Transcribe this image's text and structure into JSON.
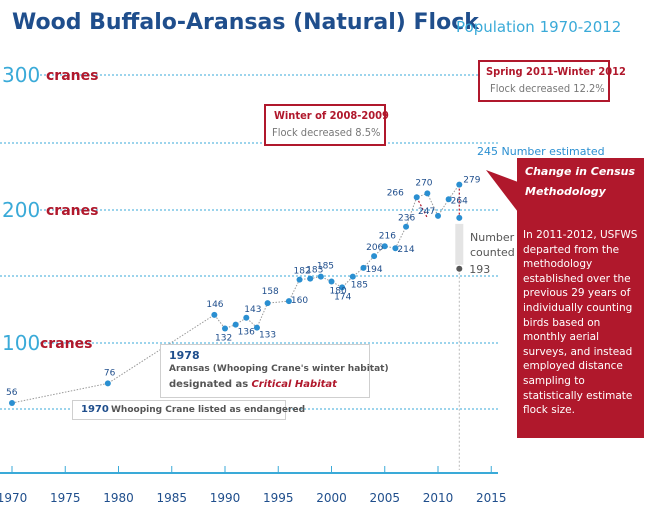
{
  "header": {
    "title": "Wood Buffalo-Aransas (Natural) Flock",
    "subtitle": "Population 1970-2012"
  },
  "reference_lines": [
    {
      "value": 300,
      "number": "300",
      "unit": "cranes"
    },
    {
      "value": 200,
      "number": "200",
      "unit": "cranes"
    },
    {
      "value": 100,
      "number": "100",
      "unit": "cranes"
    }
  ],
  "annotations": {
    "habitat_year": "1978",
    "habitat_line1": "Aransas (Whooping Crane's winter habitat)",
    "habitat_line2_prefix": "designated as",
    "habitat_line2_emph": "Critical Habitat",
    "endangered_year": "1970",
    "endangered_text": "Whooping Crane listed as endangered",
    "winter_title": "Winter of 2008-2009",
    "winter_text": "Flock decreased 8.5%",
    "spring_title": "Spring 2011-Winter 2012",
    "spring_text": "Flock decreased 12.2%",
    "estimated_label": "245 Number estimated",
    "counted_value": "193",
    "counted_label_1": "Number",
    "counted_label_2": "counted",
    "census_title_1": "Change in Census",
    "census_title_2": "Methodology",
    "census_body": "In 2011-2012, USFWS departed from the methodology established over the previous 29 years of individually counting birds based on monthly aerial surveys, and instead employed distance sampling to statistically estimate flock size."
  },
  "colors": {
    "title": "#1f4e8c",
    "accent": "#3aaad8",
    "point": "#2a8fd1",
    "brand_red": "#b0182c"
  },
  "chart_data": {
    "type": "line",
    "title": "Wood Buffalo-Aransas (Natural) Flock",
    "subtitle": "Population 1970-2012",
    "xlim": [
      1970,
      2015
    ],
    "ylim": [
      40,
      320
    ],
    "x_ticks": [
      1970,
      1975,
      1980,
      1985,
      1990,
      1995,
      2000,
      2005,
      2010,
      2015
    ],
    "grid": false,
    "series": [
      {
        "name": "Number counted",
        "x": [
          1970,
          1979,
          1989,
          1990,
          1991,
          1992,
          1993,
          1994,
          1996,
          1997,
          1998,
          1999,
          2000,
          2001,
          2002,
          2003,
          2004,
          2005,
          2006,
          2007,
          2008,
          2009,
          2010,
          2011
        ],
        "y": [
          56,
          76,
          146,
          132,
          136,
          143,
          133,
          158,
          160,
          182,
          183,
          185,
          180,
          174,
          185,
          194,
          206,
          216,
          214,
          236,
          266,
          270,
          247,
          264
        ]
      },
      {
        "name": "Number estimated",
        "x": [
          2011,
          2012
        ],
        "y": [
          279,
          245
        ]
      },
      {
        "name": "Number counted 2012",
        "x": [
          2012
        ],
        "y": [
          193
        ]
      }
    ],
    "point_labels": [
      {
        "x": 1970,
        "y": 56,
        "text": "56"
      },
      {
        "x": 1979,
        "y": 76,
        "text": "76"
      },
      {
        "x": 1989,
        "y": 146,
        "text": "146"
      },
      {
        "x": 1990,
        "y": 132,
        "text": "132"
      },
      {
        "x": 1991,
        "y": 136,
        "text": "136"
      },
      {
        "x": 1992,
        "y": 143,
        "text": "143"
      },
      {
        "x": 1993,
        "y": 133,
        "text": "133"
      },
      {
        "x": 1994,
        "y": 158,
        "text": "158"
      },
      {
        "x": 1996,
        "y": 160,
        "text": "160"
      },
      {
        "x": 1997,
        "y": 182,
        "text": "182"
      },
      {
        "x": 1998,
        "y": 183,
        "text": "183"
      },
      {
        "x": 1999,
        "y": 185,
        "text": "185"
      },
      {
        "x": 2000,
        "y": 180,
        "text": "180"
      },
      {
        "x": 2001,
        "y": 174,
        "text": "174"
      },
      {
        "x": 2002,
        "y": 185,
        "text": "185"
      },
      {
        "x": 2003,
        "y": 194,
        "text": "194"
      },
      {
        "x": 2004,
        "y": 206,
        "text": "206"
      },
      {
        "x": 2005,
        "y": 216,
        "text": "216"
      },
      {
        "x": 2006,
        "y": 214,
        "text": "214"
      },
      {
        "x": 2007,
        "y": 236,
        "text": "236"
      },
      {
        "x": 2008,
        "y": 266,
        "text": "266"
      },
      {
        "x": 2009,
        "y": 270,
        "text": "270"
      },
      {
        "x": 2010,
        "y": 247,
        "text": "247"
      },
      {
        "x": 2011,
        "y": 264,
        "text": "264"
      },
      {
        "x": 2012,
        "y": 279,
        "text": "279"
      }
    ]
  }
}
